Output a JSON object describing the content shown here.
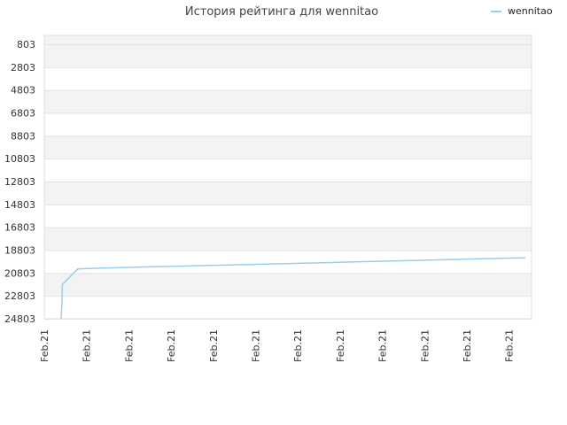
{
  "chart_data": {
    "type": "line",
    "title": "История рейтинга для wennitao",
    "legend": {
      "placement": "top-right",
      "label": "wennitao",
      "color": "#99ccee"
    },
    "y_axis": {
      "ticks": [
        "803",
        "2803",
        "4803",
        "6803",
        "8803",
        "10803",
        "12803",
        "14803",
        "16803",
        "18803",
        "20803",
        "22803",
        "24803"
      ],
      "range": [
        803,
        24803
      ],
      "inverted": true
    },
    "x_axis": {
      "ticks": [
        "Feb.21",
        "Feb.21",
        "Feb.21",
        "Feb.21",
        "Feb.21",
        "Feb.21",
        "Feb.21",
        "Feb.21",
        "Feb.21",
        "Feb.21",
        "Feb.21",
        "Feb.21"
      ],
      "range": [
        0,
        11.5
      ]
    },
    "grid": true,
    "band_colors": [
      "#f3f3f3",
      "#ffffff"
    ],
    "series": [
      {
        "name": "wennitao",
        "color": "#99ccee",
        "points": [
          [
            0.3,
            24803
          ],
          [
            0.32,
            23300
          ],
          [
            0.33,
            21800
          ],
          [
            0.7,
            20450
          ],
          [
            1.2,
            20380
          ],
          [
            2.1,
            20300
          ],
          [
            3.0,
            20220
          ],
          [
            3.9,
            20140
          ],
          [
            4.8,
            20060
          ],
          [
            5.7,
            19980
          ],
          [
            6.6,
            19900
          ],
          [
            7.5,
            19820
          ],
          [
            8.4,
            19740
          ],
          [
            9.3,
            19660
          ],
          [
            10.2,
            19580
          ],
          [
            11.1,
            19500
          ],
          [
            11.5,
            19480
          ]
        ]
      }
    ]
  }
}
